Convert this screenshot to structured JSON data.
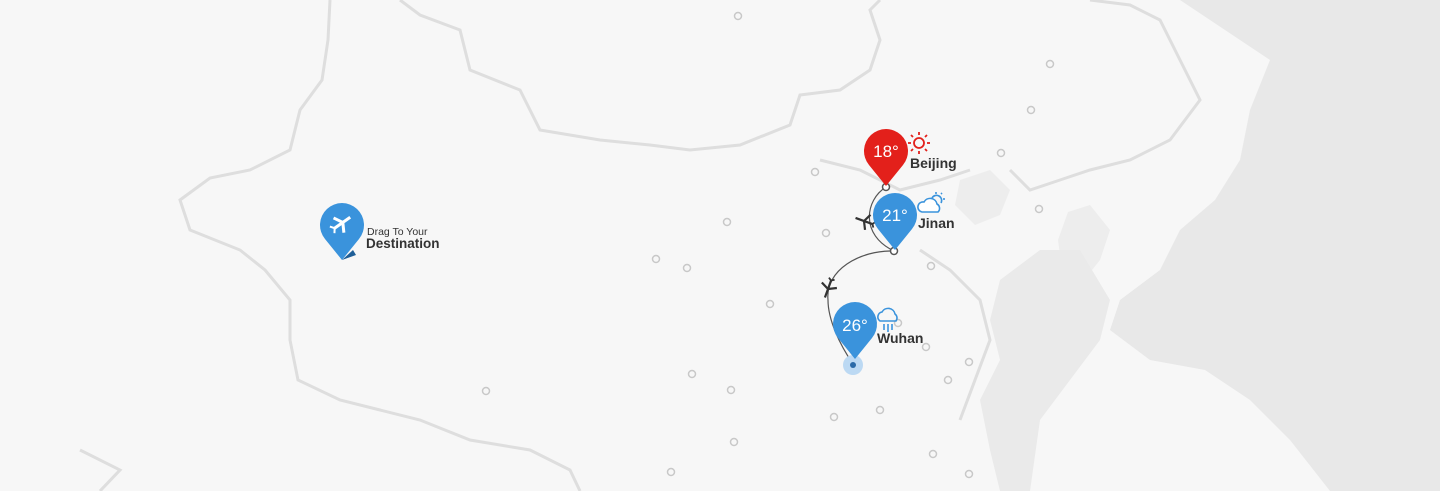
{
  "colors": {
    "background": "#f7f7f7",
    "land": "#f2f2f2",
    "sea_neighbor": "#e6e6e6",
    "border": "#e0e0e0",
    "pin_blue": "#3a93dc",
    "pin_red": "#e3201b",
    "route": "#555555",
    "sun": "#e3201b",
    "cloud": "#3a93dc"
  },
  "drag_marker": {
    "line1": "Drag To Your",
    "line2": "Destination",
    "icon": "airplane-icon"
  },
  "cities": [
    {
      "name": "Beijing",
      "temperature": "18°",
      "weather_icon": "sun-icon",
      "pin_color": "red"
    },
    {
      "name": "Jinan",
      "temperature": "21°",
      "weather_icon": "partly-cloudy-icon",
      "pin_color": "blue"
    },
    {
      "name": "Wuhan",
      "temperature": "26°",
      "weather_icon": "rain-icon",
      "pin_color": "blue"
    }
  ],
  "route_icons": [
    "airplane-icon",
    "airplane-icon"
  ]
}
